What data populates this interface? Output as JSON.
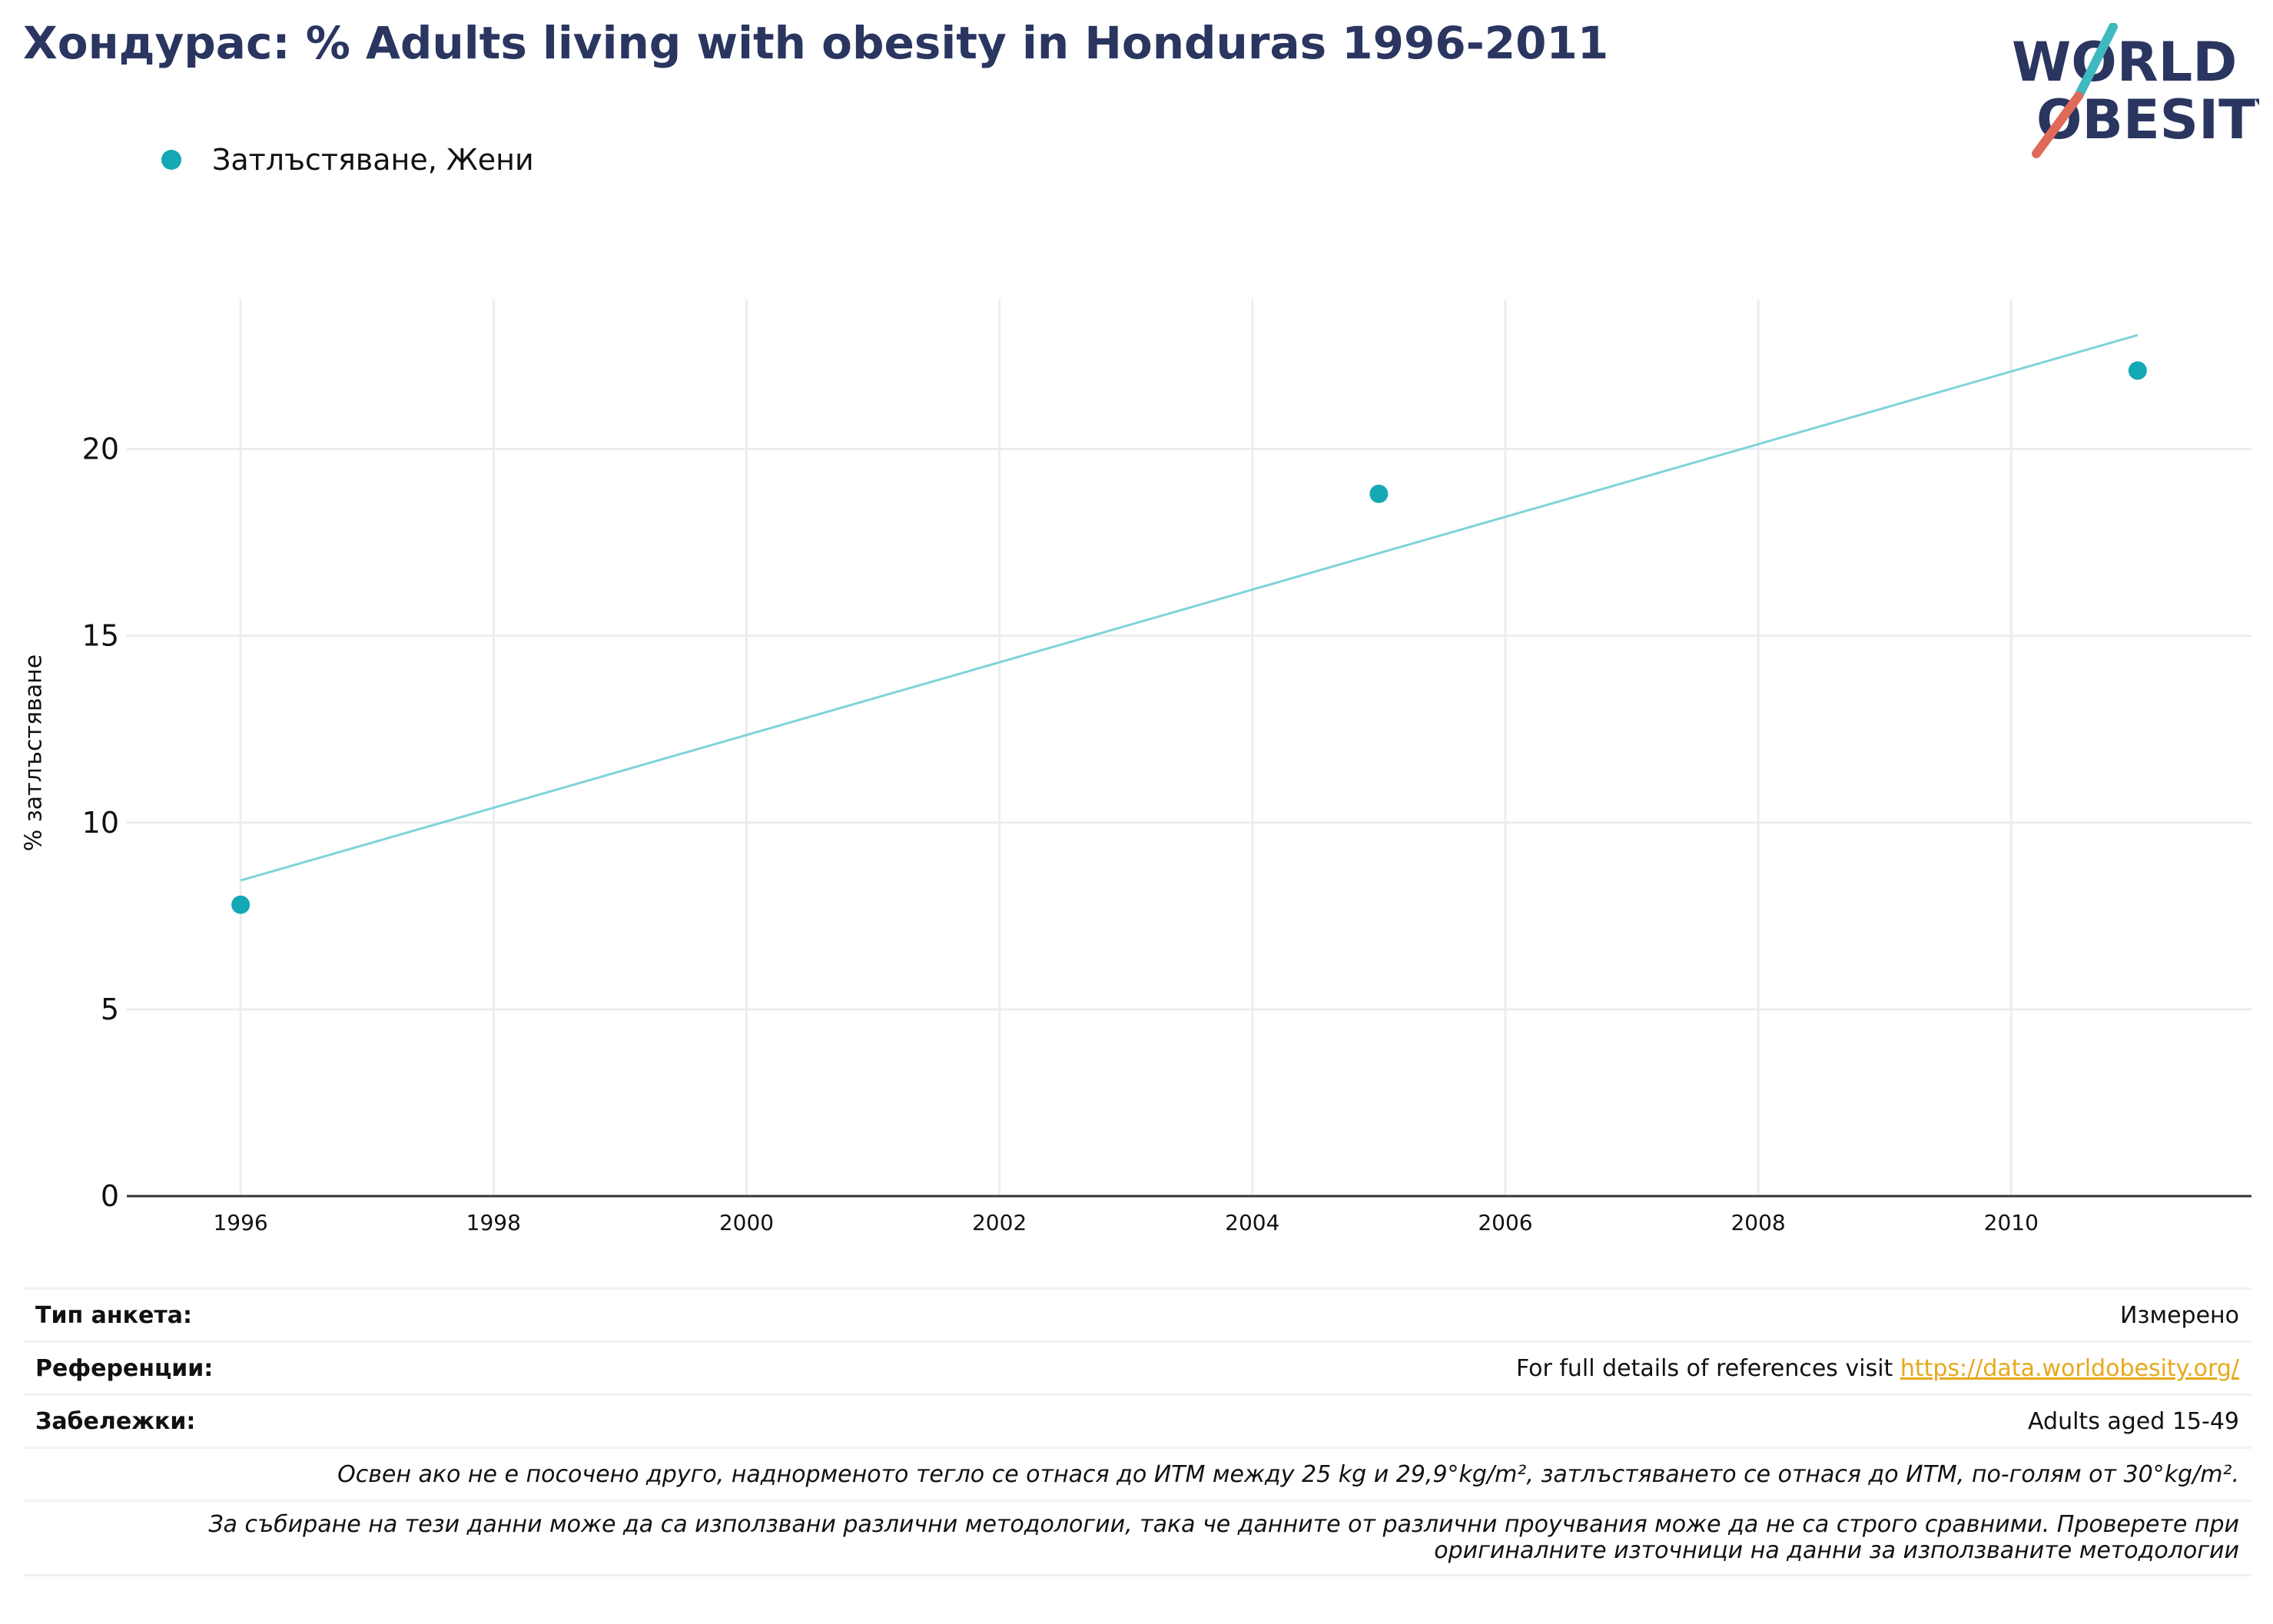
{
  "title": "Хондурас: % Adults living with obesity in Honduras 1996-2011",
  "logo": {
    "line1": "WORLD",
    "line2": "OBESITY",
    "colors": {
      "text": "#2a3560",
      "slash_top": "#3fb8c0",
      "slash_bottom": "#e06a5a"
    }
  },
  "legend": {
    "label": "Затлъстяване, Жени",
    "color": "#14a8b4"
  },
  "chart_data": {
    "type": "scatter",
    "title": "Хондурас: % Adults living with obesity in Honduras 1996-2011",
    "xlabel": "",
    "ylabel": "% затлъстяване",
    "xlim": [
      1995.1,
      2011.9
    ],
    "ylim": [
      0,
      24
    ],
    "x_ticks": [
      1996,
      1998,
      2000,
      2002,
      2004,
      2006,
      2008,
      2010
    ],
    "y_ticks": [
      0,
      5,
      10,
      15,
      20
    ],
    "grid": true,
    "legend_position": "top-left",
    "series": [
      {
        "name": "Затлъстяване, Жени",
        "color": "#14a8b4",
        "points": [
          {
            "x": 1996,
            "y": 7.8
          },
          {
            "x": 2005,
            "y": 18.8
          },
          {
            "x": 2011,
            "y": 22.1
          }
        ]
      }
    ],
    "trendline": {
      "color": "#7fd3d9",
      "points": [
        {
          "x": 1996,
          "y": 8.45
        },
        {
          "x": 2011,
          "y": 23.05
        }
      ]
    }
  },
  "info": {
    "survey_type_label": "Тип анкета:",
    "survey_type_value": "Измерено",
    "references_label": "Референции:",
    "references_text": "For full details of references visit ",
    "references_link": "https://data.worldobesity.org/",
    "notes_label": "Забележки:",
    "notes_value": "Adults aged 15-49",
    "definition_note": "Освен ако не е посочено друго, наднорменото тегло се отнася до ИТМ между 25 kg и 29,9°kg/m², затлъстяването се отнася до ИТМ, по-голям от 30°kg/m².",
    "methodology_note_line1": "За събиране на тези данни може да са използвани различни методологии, така че данните от различни проучвания може да не са строго сравними. Проверете при",
    "methodology_note_line2": "оригиналните източници на данни за използваните методологии"
  }
}
